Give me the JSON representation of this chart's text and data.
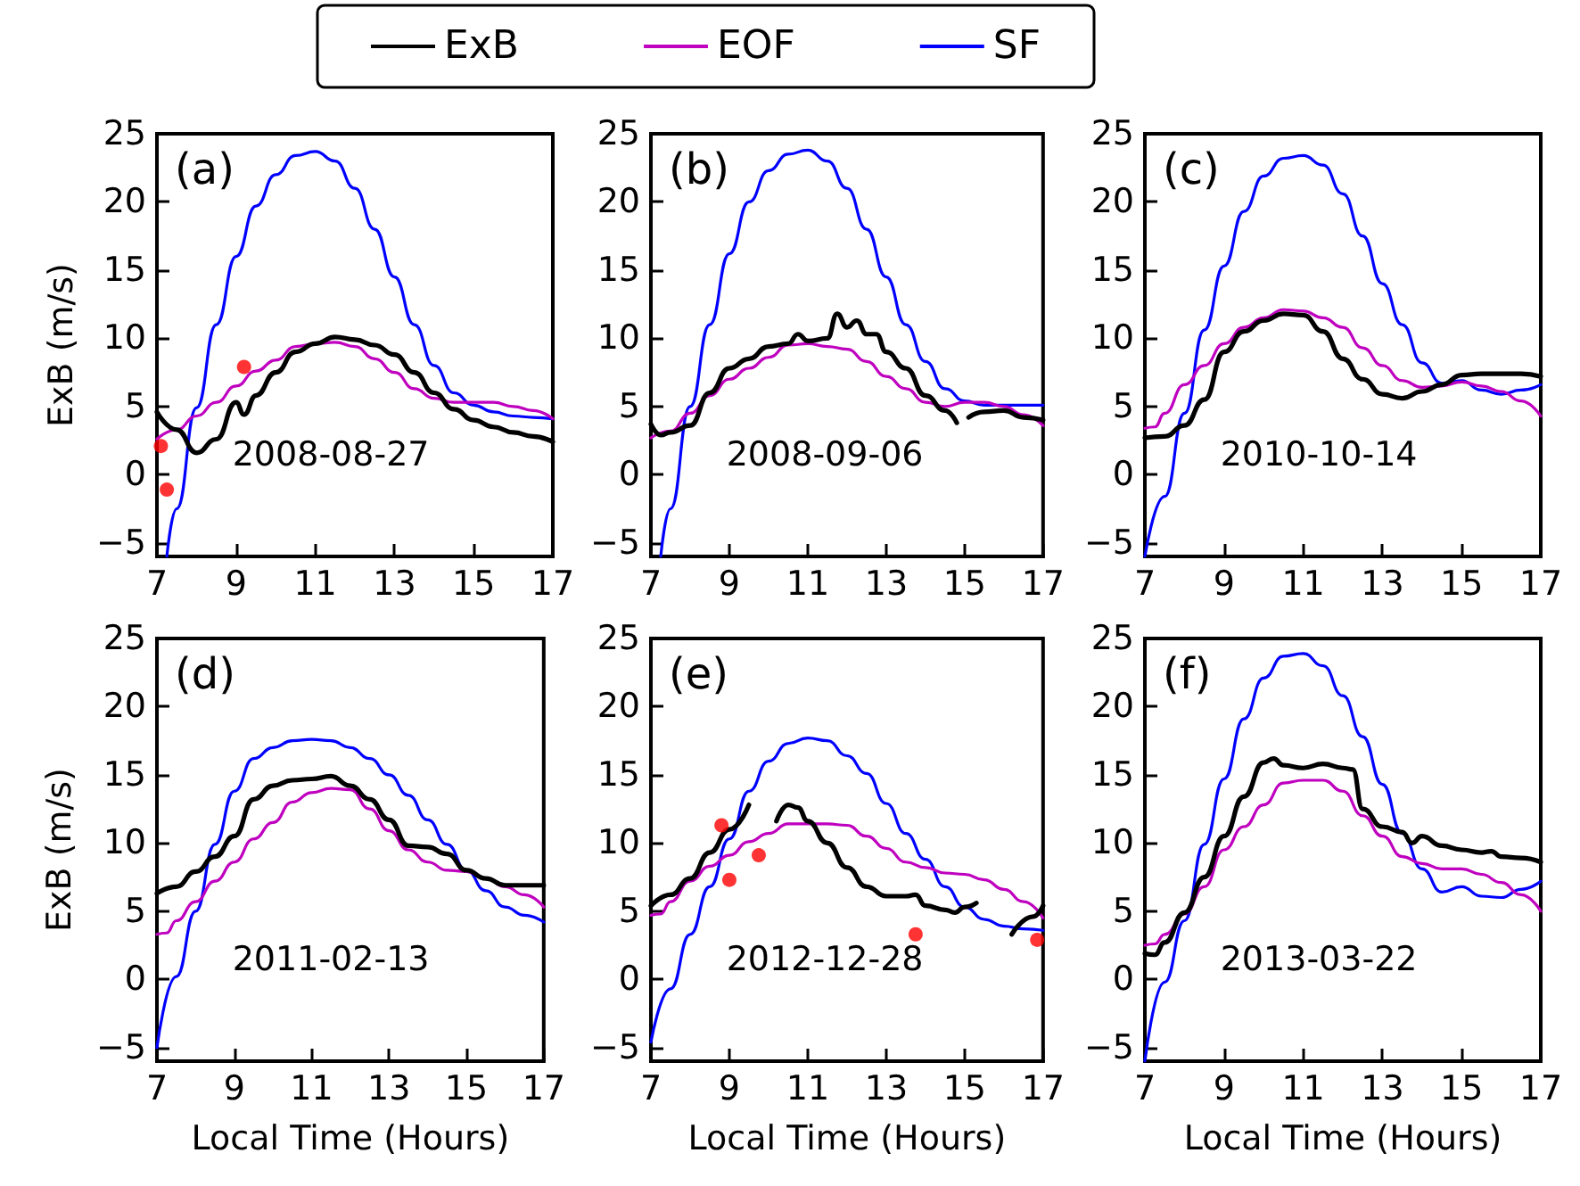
{
  "chart_data": [
    {
      "type": "line",
      "annotations": [
        "(a)",
        "2008-08-27"
      ],
      "ylabel": "ExB (m/s)",
      "xlim": [
        7,
        17
      ],
      "xticks": [
        7,
        9,
        11,
        13,
        15,
        17
      ],
      "ylim": [
        -6,
        25
      ],
      "yticks": [
        -5,
        0,
        5,
        10,
        15,
        20,
        25
      ],
      "legend": "top",
      "series": [
        {
          "name": "ExB",
          "color": "#000000",
          "x": [
            7,
            7.5,
            8,
            8.5,
            9,
            9.2,
            9.5,
            10,
            10.5,
            11,
            11.5,
            12,
            12.5,
            13,
            13.5,
            14,
            14.5,
            15,
            15.5,
            16,
            16.5,
            17
          ],
          "values": [
            4.6,
            3.3,
            1.6,
            2.6,
            5.3,
            4.4,
            5.8,
            7.5,
            9,
            9.6,
            10.1,
            9.9,
            9.5,
            8.8,
            7.5,
            6,
            4.8,
            4,
            3.5,
            3.1,
            2.8,
            2.4
          ]
        },
        {
          "name": "EOF",
          "color": "#bf00bf",
          "x": [
            7,
            7.5,
            8,
            8.5,
            9,
            9.5,
            10,
            10.5,
            11,
            11.5,
            12,
            12.5,
            13,
            13.5,
            14,
            14.5,
            15,
            15.5,
            16,
            16.5,
            17
          ],
          "values": [
            2.6,
            3.3,
            4.3,
            5.3,
            6.5,
            7.6,
            8.4,
            9.4,
            9.6,
            9.7,
            9.4,
            8.5,
            7.5,
            6.3,
            5.6,
            5.3,
            5.3,
            5.3,
            5,
            4.7,
            4.1
          ]
        },
        {
          "name": "SF",
          "color": "#0000ff",
          "x": [
            7.25,
            7.5,
            8,
            8.5,
            9,
            9.5,
            10,
            10.5,
            11,
            11.5,
            12,
            12.5,
            13,
            13.5,
            14,
            14.5,
            15,
            15.5,
            16,
            16.5,
            17
          ],
          "values": [
            -6,
            -2.5,
            4.9,
            11,
            16,
            19.7,
            22,
            23.4,
            23.7,
            23,
            21,
            18,
            14.5,
            11,
            8,
            6,
            5.1,
            4.6,
            4.3,
            4.2,
            4.1
          ]
        },
        {
          "type": "scatter",
          "marker": "circle",
          "color": "#ff0000",
          "x": [
            7.1,
            7.25,
            9.2
          ],
          "values": [
            2.1,
            -1.1,
            7.9
          ]
        }
      ]
    },
    {
      "type": "line",
      "annotations": [
        "(b)",
        "2008-09-06"
      ],
      "xlim": [
        7,
        17
      ],
      "xticks": [
        7,
        9,
        11,
        13,
        15,
        17
      ],
      "ylim": [
        -6,
        25
      ],
      "yticks": [
        -5,
        0,
        5,
        10,
        15,
        20,
        25
      ],
      "series": [
        {
          "color": "#000000",
          "x": [
            7,
            7.25,
            7.5,
            8,
            8.5,
            9,
            9.5,
            10,
            10.5,
            10.75,
            11,
            11.5,
            11.75,
            12,
            12.25,
            12.5,
            12.75,
            13,
            13.5,
            14,
            14.5,
            14.8,
            14.95,
            15.1,
            15.5,
            16,
            16.5,
            17
          ],
          "values": [
            3.7,
            2.9,
            3.1,
            3.6,
            6,
            7.8,
            8.5,
            9.4,
            9.6,
            10.3,
            9.8,
            10,
            11.8,
            10.8,
            11.3,
            10.3,
            10.3,
            9,
            7.8,
            5.8,
            4.7,
            3.8,
            null,
            4.2,
            4.6,
            4.7,
            4.2,
            4
          ]
        },
        {
          "color": "#bf00bf",
          "x": [
            7,
            7.5,
            8,
            8.5,
            9,
            9.5,
            10,
            10.5,
            11,
            11.5,
            12,
            12.5,
            13,
            13.5,
            14,
            14.5,
            15,
            15.5,
            16,
            16.5,
            17
          ],
          "values": [
            2.7,
            3.2,
            4.5,
            5.8,
            7,
            7.8,
            8.6,
            9.5,
            9.6,
            9.4,
            9.2,
            8.3,
            7.2,
            6.3,
            5.3,
            5,
            5.3,
            5.3,
            5,
            4.4,
            3.6
          ]
        },
        {
          "color": "#0000ff",
          "x": [
            7.25,
            7.5,
            8,
            8.5,
            9,
            9.5,
            10,
            10.5,
            11,
            11.5,
            12,
            12.5,
            13,
            13.5,
            14,
            14.5,
            15,
            15.5,
            16,
            16.5,
            17
          ],
          "values": [
            -6,
            -2.5,
            5,
            11,
            16.2,
            20,
            22.3,
            23.5,
            23.8,
            23,
            21,
            18,
            14.5,
            11,
            8.3,
            6.3,
            5.4,
            5.1,
            5.1,
            5.1,
            5.1
          ]
        }
      ]
    },
    {
      "type": "line",
      "annotations": [
        "(c)",
        "2010-10-14"
      ],
      "xlim": [
        7,
        17
      ],
      "xticks": [
        7,
        9,
        11,
        13,
        15,
        17
      ],
      "ylim": [
        -6,
        25
      ],
      "yticks": [
        -5,
        0,
        5,
        10,
        15,
        20,
        25
      ],
      "series": [
        {
          "color": "#000000",
          "x": [
            7,
            7.5,
            8,
            8.5,
            9,
            9.5,
            10,
            10.5,
            11,
            11.5,
            12,
            12.5,
            13,
            13.5,
            14,
            14.5,
            15,
            15.5,
            16,
            16.5,
            17
          ],
          "values": [
            2.7,
            2.8,
            3.6,
            5.5,
            9,
            10.5,
            11.3,
            11.8,
            11.7,
            10.5,
            8.5,
            7,
            5.9,
            5.6,
            6.1,
            6.6,
            7.3,
            7.4,
            7.4,
            7.4,
            7.2
          ]
        },
        {
          "color": "#bf00bf",
          "x": [
            7,
            7.25,
            7.5,
            8,
            8.5,
            9,
            9.5,
            10,
            10.5,
            11,
            11.5,
            12,
            12.5,
            13,
            13.5,
            14,
            14.5,
            15,
            15.5,
            16,
            16.5,
            17
          ],
          "values": [
            3.4,
            3.5,
            4.5,
            6.6,
            8,
            9.6,
            10.8,
            11.5,
            12.1,
            12,
            11.5,
            10.8,
            9.3,
            8,
            6.9,
            6.4,
            6.5,
            6.8,
            6.5,
            6.1,
            5.4,
            4.3
          ]
        },
        {
          "color": "#0000ff",
          "x": [
            7,
            7.5,
            8,
            8.5,
            9,
            9.5,
            10,
            10.5,
            11,
            11.5,
            12,
            12.5,
            13,
            13.5,
            14,
            14.5,
            15,
            15.5,
            16,
            16.5,
            17
          ],
          "values": [
            -6,
            -1.6,
            4.5,
            10.6,
            15.3,
            19.3,
            21.9,
            23.2,
            23.4,
            22.7,
            20.6,
            17.5,
            14,
            11,
            8.2,
            6.7,
            6.9,
            6.2,
            5.9,
            6.2,
            6.6
          ]
        }
      ]
    },
    {
      "type": "line",
      "annotations": [
        "(d)",
        "2011-02-13"
      ],
      "ylabel": "ExB (m/s)",
      "xlabel": "Local Time (Hours)",
      "xlim": [
        7,
        17
      ],
      "xticks": [
        7,
        9,
        11,
        13,
        15,
        17
      ],
      "ylim": [
        -6,
        25
      ],
      "yticks": [
        -5,
        0,
        5,
        10,
        15,
        20,
        25
      ],
      "series": [
        {
          "color": "#000000",
          "x": [
            7,
            7.5,
            8,
            8.5,
            9,
            9.5,
            10,
            10.5,
            11,
            11.5,
            12,
            12.5,
            13,
            13.5,
            14,
            14.5,
            15,
            15.5,
            16,
            16.5,
            17
          ],
          "values": [
            6.3,
            6.8,
            7.9,
            9,
            10.5,
            13.2,
            14.2,
            14.6,
            14.7,
            14.9,
            14.2,
            13.2,
            11.7,
            9.8,
            9.7,
            9.2,
            8,
            7.4,
            6.9,
            6.9,
            6.9
          ]
        },
        {
          "color": "#bf00bf",
          "x": [
            7,
            7.25,
            7.5,
            8,
            8.5,
            9,
            9.5,
            10,
            10.5,
            11,
            11.5,
            12,
            12.5,
            13,
            13.5,
            14,
            14.5,
            15,
            15.5,
            16,
            16.5,
            17
          ],
          "values": [
            3.3,
            3.4,
            4.3,
            5.7,
            7.2,
            8.6,
            10.3,
            11.5,
            13,
            13.7,
            14,
            13.9,
            12.5,
            10.9,
            9.5,
            8.6,
            8,
            7.9,
            7.4,
            6.8,
            6.2,
            5.3
          ]
        },
        {
          "color": "#0000ff",
          "x": [
            7,
            7.5,
            8,
            8.5,
            9,
            9.5,
            10,
            10.5,
            11,
            11.5,
            12,
            12.5,
            13,
            13.5,
            14,
            14.5,
            15,
            15.5,
            16,
            16.5,
            17
          ],
          "values": [
            -5,
            0.2,
            5,
            9.9,
            13.8,
            16.2,
            17,
            17.5,
            17.6,
            17.5,
            17,
            16.2,
            15,
            13.5,
            11.7,
            9.9,
            8,
            6.5,
            5.3,
            4.7,
            4.2
          ]
        }
      ]
    },
    {
      "type": "line",
      "annotations": [
        "(e)",
        "2012-12-28"
      ],
      "xlabel": "Local Time (Hours)",
      "xlim": [
        7,
        17
      ],
      "xticks": [
        7,
        9,
        11,
        13,
        15,
        17
      ],
      "ylim": [
        -6,
        25
      ],
      "yticks": [
        -5,
        0,
        5,
        10,
        15,
        20,
        25
      ],
      "series": [
        {
          "color": "#000000",
          "x": [
            7,
            7.5,
            8,
            8.5,
            9,
            9.5,
            9.8,
            10.2,
            10.5,
            10.75,
            11,
            11.5,
            12,
            12.5,
            13,
            13.5,
            13.75,
            14,
            14.5,
            14.75,
            15,
            15.3,
            15.8,
            16.2,
            16.75,
            17
          ],
          "values": [
            5.4,
            6.2,
            7.4,
            9.3,
            11,
            12.8,
            null,
            11.6,
            12.8,
            12.6,
            11.6,
            10,
            8.2,
            6.8,
            6.1,
            6.1,
            6.2,
            5.4,
            5.1,
            4.9,
            5.3,
            5.6,
            null,
            3.3,
            4.6,
            5.4
          ]
        },
        {
          "color": "#bf00bf",
          "x": [
            7,
            7.25,
            7.5,
            8,
            8.5,
            9,
            9.5,
            10,
            10.5,
            11,
            11.5,
            12,
            12.5,
            13,
            13.5,
            14,
            14.5,
            15,
            15.5,
            16,
            16.5,
            17
          ],
          "values": [
            4.7,
            4.8,
            5.7,
            7.2,
            8.3,
            9.1,
            10.1,
            10.7,
            11.4,
            11.4,
            11.4,
            11.3,
            10.5,
            9.6,
            8.6,
            8.2,
            7.8,
            7.7,
            7.3,
            6.6,
            5.7,
            4.5
          ]
        },
        {
          "color": "#0000ff",
          "x": [
            7,
            7.5,
            8,
            8.5,
            9,
            9.5,
            10,
            10.5,
            11,
            11.5,
            12,
            12.5,
            13,
            13.5,
            14,
            14.5,
            15,
            15.5,
            16,
            16.5,
            17
          ],
          "values": [
            -4.6,
            -0.7,
            3.3,
            6.8,
            10.3,
            13.8,
            16,
            17.3,
            17.7,
            17.5,
            16.4,
            15.1,
            12.9,
            10.7,
            8.8,
            6.8,
            5.3,
            4.4,
            3.9,
            3.7,
            3.6
          ]
        },
        {
          "type": "scatter",
          "marker": "circle",
          "color": "#ff0000",
          "x": [
            8.8,
            9,
            9.75,
            13.75,
            16.85
          ],
          "values": [
            11.3,
            7.3,
            9.1,
            3.3,
            2.9
          ]
        }
      ]
    },
    {
      "type": "line",
      "annotations": [
        "(f)",
        "2013-03-22"
      ],
      "xlabel": "Local Time (Hours)",
      "xlim": [
        7,
        17
      ],
      "xticks": [
        7,
        9,
        11,
        13,
        15,
        17
      ],
      "ylim": [
        -6,
        25
      ],
      "yticks": [
        -5,
        0,
        5,
        10,
        15,
        20,
        25
      ],
      "series": [
        {
          "color": "#000000",
          "x": [
            7,
            7.25,
            7.5,
            8,
            8.5,
            9,
            9.5,
            10,
            10.25,
            10.5,
            11,
            11.5,
            12,
            12.25,
            12.5,
            13,
            13.5,
            13.75,
            14,
            14.5,
            15,
            15.5,
            15.75,
            16,
            16.5,
            17
          ],
          "values": [
            1.9,
            1.8,
            2.7,
            4.9,
            7.5,
            10.5,
            13.4,
            15.9,
            16.2,
            15.7,
            15.5,
            15.8,
            15.5,
            15.4,
            12.5,
            11.2,
            10.8,
            10,
            10.5,
            9.8,
            9.5,
            9.3,
            9.4,
            9,
            8.9,
            8.6
          ]
        },
        {
          "color": "#bf00bf",
          "x": [
            7,
            7.25,
            7.5,
            8,
            8.5,
            9,
            9.5,
            10,
            10.5,
            11,
            11.5,
            12,
            12.5,
            13,
            13.5,
            14,
            14.5,
            15,
            15.5,
            16,
            16.5,
            17
          ],
          "values": [
            2.5,
            2.6,
            3.3,
            4.8,
            6.8,
            9.5,
            11.2,
            12.8,
            14.4,
            14.6,
            14.6,
            13.8,
            12,
            10.5,
            9,
            8.5,
            8.1,
            8.1,
            7.7,
            7.1,
            6.2,
            5
          ]
        },
        {
          "color": "#0000ff",
          "x": [
            7,
            7.5,
            8,
            8.5,
            9,
            9.5,
            10,
            10.5,
            11,
            11.5,
            12,
            12.5,
            13,
            13.5,
            14,
            14.5,
            15,
            15.5,
            16,
            16.5,
            17
          ],
          "values": [
            -6,
            -0.2,
            4.3,
            9.9,
            14.7,
            19.1,
            22.1,
            23.7,
            23.9,
            23,
            20.8,
            17.8,
            14.3,
            10.7,
            8.1,
            6.4,
            6.8,
            6.1,
            6,
            6.6,
            7.2
          ]
        }
      ]
    }
  ]
}
